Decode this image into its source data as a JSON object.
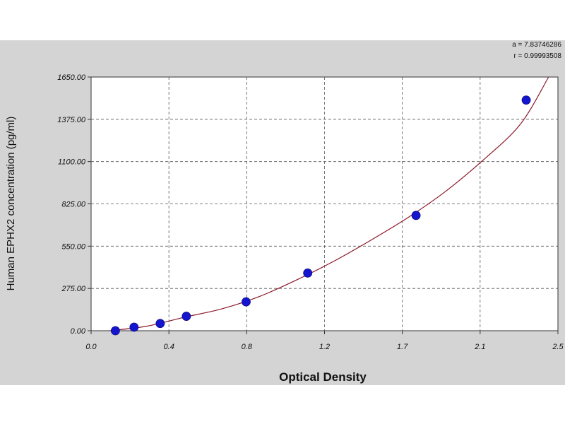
{
  "chart_data": {
    "type": "scatter",
    "xlabel": "Optical Density",
    "ylabel": "Human EPHX2 concentration (pg/ml)",
    "xlim": [
      0.0,
      2.5
    ],
    "ylim": [
      0,
      1650
    ],
    "x_ticks": [
      "0.0",
      "0.4",
      "0.8",
      "1.2",
      "1.7",
      "2.1",
      "2.5"
    ],
    "y_ticks": [
      "0.00",
      "275.00",
      "550.00",
      "825.00",
      "1100.00",
      "1375.00",
      "1650.00"
    ],
    "grid": true,
    "series": [
      {
        "marker_color": "#1515d0",
        "line_color": "#8b1a2a",
        "points": [
          {
            "x": 0.13,
            "y": 0
          },
          {
            "x": 0.23,
            "y": 23
          },
          {
            "x": 0.37,
            "y": 47
          },
          {
            "x": 0.51,
            "y": 94
          },
          {
            "x": 0.83,
            "y": 188
          },
          {
            "x": 1.16,
            "y": 375
          },
          {
            "x": 1.74,
            "y": 750
          },
          {
            "x": 2.33,
            "y": 1500
          }
        ]
      }
    ],
    "fit_curve": {
      "points": [
        {
          "x": 0.1,
          "y": 0
        },
        {
          "x": 0.3,
          "y": 30
        },
        {
          "x": 0.5,
          "y": 88
        },
        {
          "x": 0.7,
          "y": 142
        },
        {
          "x": 0.9,
          "y": 222
        },
        {
          "x": 1.1,
          "y": 330
        },
        {
          "x": 1.3,
          "y": 452
        },
        {
          "x": 1.5,
          "y": 590
        },
        {
          "x": 1.7,
          "y": 738
        },
        {
          "x": 1.9,
          "y": 908
        },
        {
          "x": 2.1,
          "y": 1110
        },
        {
          "x": 2.3,
          "y": 1345
        },
        {
          "x": 2.45,
          "y": 1650
        }
      ]
    },
    "annotations": [
      "a = 7.83746286",
      "r = 0.99993508"
    ]
  }
}
